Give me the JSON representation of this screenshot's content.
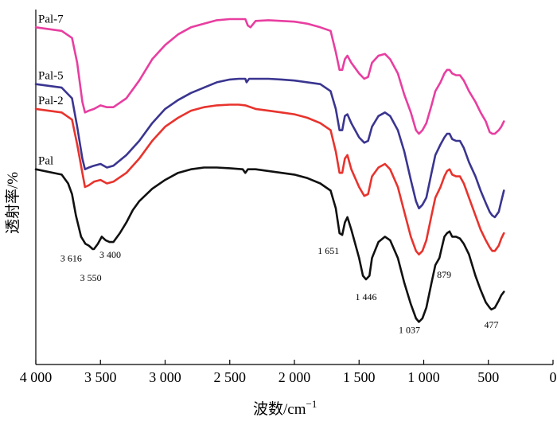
{
  "chart_data": {
    "type": "line",
    "title": "",
    "xlabel": "波数/cm",
    "xlabel_superscript": "−1",
    "ylabel": "透射率/%",
    "xlim": [
      4000,
      0
    ],
    "x_ticks": [
      4000,
      3500,
      3000,
      2500,
      2000,
      1500,
      1000,
      500,
      0
    ],
    "x_tick_labels": [
      "4 000",
      "3 500",
      "3 000",
      "2 500",
      "2 000",
      "1 500",
      "1 000",
      "500",
      "0"
    ],
    "y_ticks_shown": false,
    "ylim": [
      0,
      100
    ],
    "series": [
      {
        "name": "Pal-7",
        "color": "#e83ea0",
        "points": [
          [
            4000,
            95
          ],
          [
            3800,
            94
          ],
          [
            3720,
            92
          ],
          [
            3680,
            85
          ],
          [
            3640,
            74
          ],
          [
            3620,
            71
          ],
          [
            3590,
            71.5
          ],
          [
            3550,
            72
          ],
          [
            3500,
            73
          ],
          [
            3450,
            72.5
          ],
          [
            3400,
            72.5
          ],
          [
            3300,
            75
          ],
          [
            3200,
            80
          ],
          [
            3100,
            86
          ],
          [
            3000,
            90
          ],
          [
            2900,
            93
          ],
          [
            2800,
            95
          ],
          [
            2700,
            96
          ],
          [
            2600,
            97
          ],
          [
            2500,
            97.3
          ],
          [
            2430,
            97.3
          ],
          [
            2380,
            97.3
          ],
          [
            2360,
            95.5
          ],
          [
            2340,
            95
          ],
          [
            2300,
            96.8
          ],
          [
            2200,
            97
          ],
          [
            2100,
            96.8
          ],
          [
            2000,
            96.6
          ],
          [
            1900,
            96
          ],
          [
            1800,
            95
          ],
          [
            1720,
            94
          ],
          [
            1680,
            88
          ],
          [
            1651,
            83
          ],
          [
            1630,
            83
          ],
          [
            1610,
            86
          ],
          [
            1590,
            87
          ],
          [
            1560,
            85
          ],
          [
            1500,
            82
          ],
          [
            1460,
            80.5
          ],
          [
            1430,
            81
          ],
          [
            1400,
            85
          ],
          [
            1350,
            87
          ],
          [
            1300,
            87.5
          ],
          [
            1260,
            86
          ],
          [
            1200,
            82
          ],
          [
            1150,
            76
          ],
          [
            1100,
            71
          ],
          [
            1060,
            66
          ],
          [
            1037,
            65
          ],
          [
            1010,
            66
          ],
          [
            980,
            68
          ],
          [
            940,
            73
          ],
          [
            910,
            77
          ],
          [
            870,
            79.5
          ],
          [
            840,
            82
          ],
          [
            820,
            83
          ],
          [
            800,
            83
          ],
          [
            780,
            82
          ],
          [
            750,
            81.5
          ],
          [
            720,
            81.5
          ],
          [
            690,
            80
          ],
          [
            650,
            77
          ],
          [
            600,
            74
          ],
          [
            560,
            71
          ],
          [
            520,
            68.5
          ],
          [
            490,
            65.5
          ],
          [
            470,
            65
          ],
          [
            450,
            65
          ],
          [
            420,
            66
          ],
          [
            400,
            67
          ],
          [
            380,
            68.5
          ]
        ]
      },
      {
        "name": "Pal-5",
        "color": "#3a3590",
        "points": [
          [
            4000,
            79
          ],
          [
            3800,
            78
          ],
          [
            3720,
            75
          ],
          [
            3680,
            67
          ],
          [
            3640,
            58
          ],
          [
            3620,
            55
          ],
          [
            3590,
            55.5
          ],
          [
            3550,
            56
          ],
          [
            3500,
            56.5
          ],
          [
            3450,
            55.5
          ],
          [
            3400,
            56
          ],
          [
            3300,
            59
          ],
          [
            3200,
            63
          ],
          [
            3100,
            68
          ],
          [
            3000,
            72
          ],
          [
            2900,
            74.5
          ],
          [
            2800,
            76.5
          ],
          [
            2700,
            78
          ],
          [
            2600,
            79.5
          ],
          [
            2500,
            80.3
          ],
          [
            2430,
            80.5
          ],
          [
            2380,
            80.5
          ],
          [
            2370,
            79.5
          ],
          [
            2350,
            80.5
          ],
          [
            2300,
            80.5
          ],
          [
            2200,
            80.5
          ],
          [
            2100,
            80.3
          ],
          [
            2000,
            80
          ],
          [
            1900,
            79.5
          ],
          [
            1800,
            79
          ],
          [
            1720,
            77
          ],
          [
            1680,
            72
          ],
          [
            1651,
            66
          ],
          [
            1630,
            66
          ],
          [
            1610,
            70
          ],
          [
            1590,
            70.5
          ],
          [
            1560,
            68
          ],
          [
            1500,
            64
          ],
          [
            1460,
            62.5
          ],
          [
            1430,
            63
          ],
          [
            1400,
            67
          ],
          [
            1350,
            70
          ],
          [
            1300,
            71
          ],
          [
            1260,
            70
          ],
          [
            1200,
            66
          ],
          [
            1150,
            60
          ],
          [
            1100,
            52
          ],
          [
            1060,
            46
          ],
          [
            1037,
            44
          ],
          [
            1010,
            45
          ],
          [
            980,
            47
          ],
          [
            940,
            54
          ],
          [
            910,
            59
          ],
          [
            870,
            62
          ],
          [
            840,
            64
          ],
          [
            820,
            65
          ],
          [
            800,
            65
          ],
          [
            780,
            63.5
          ],
          [
            750,
            63
          ],
          [
            720,
            63
          ],
          [
            690,
            61
          ],
          [
            650,
            57
          ],
          [
            600,
            53
          ],
          [
            560,
            49
          ],
          [
            520,
            45.5
          ],
          [
            490,
            43
          ],
          [
            470,
            42
          ],
          [
            450,
            41.5
          ],
          [
            420,
            43
          ],
          [
            400,
            46
          ],
          [
            380,
            49
          ]
        ]
      },
      {
        "name": "Pal-2",
        "color": "#e8332d",
        "points": [
          [
            4000,
            72
          ],
          [
            3800,
            71
          ],
          [
            3720,
            69
          ],
          [
            3680,
            62
          ],
          [
            3640,
            54
          ],
          [
            3620,
            50
          ],
          [
            3590,
            50.5
          ],
          [
            3550,
            51.5
          ],
          [
            3500,
            52
          ],
          [
            3450,
            51
          ],
          [
            3400,
            51.5
          ],
          [
            3300,
            54
          ],
          [
            3200,
            58
          ],
          [
            3100,
            63
          ],
          [
            3000,
            67
          ],
          [
            2900,
            69.5
          ],
          [
            2800,
            71.5
          ],
          [
            2700,
            72.5
          ],
          [
            2600,
            73
          ],
          [
            2500,
            73.2
          ],
          [
            2430,
            73.2
          ],
          [
            2380,
            73
          ],
          [
            2300,
            72
          ],
          [
            2200,
            71.5
          ],
          [
            2100,
            71
          ],
          [
            2000,
            70.5
          ],
          [
            1900,
            69.5
          ],
          [
            1800,
            68
          ],
          [
            1720,
            66
          ],
          [
            1680,
            60
          ],
          [
            1651,
            54
          ],
          [
            1630,
            54
          ],
          [
            1610,
            58
          ],
          [
            1590,
            59
          ],
          [
            1560,
            55
          ],
          [
            1500,
            50
          ],
          [
            1460,
            47.5
          ],
          [
            1430,
            48
          ],
          [
            1400,
            53
          ],
          [
            1350,
            55.5
          ],
          [
            1300,
            56.5
          ],
          [
            1260,
            55
          ],
          [
            1200,
            50
          ],
          [
            1150,
            43
          ],
          [
            1100,
            36
          ],
          [
            1060,
            32
          ],
          [
            1037,
            31
          ],
          [
            1010,
            32
          ],
          [
            980,
            35
          ],
          [
            940,
            42
          ],
          [
            910,
            47
          ],
          [
            870,
            50
          ],
          [
            840,
            53
          ],
          [
            820,
            54.5
          ],
          [
            800,
            55
          ],
          [
            780,
            53.5
          ],
          [
            750,
            53
          ],
          [
            720,
            53
          ],
          [
            690,
            51
          ],
          [
            650,
            47
          ],
          [
            600,
            42
          ],
          [
            560,
            38
          ],
          [
            520,
            35
          ],
          [
            490,
            33
          ],
          [
            470,
            32
          ],
          [
            450,
            32
          ],
          [
            420,
            33.5
          ],
          [
            400,
            35.5
          ],
          [
            380,
            37
          ]
        ]
      },
      {
        "name": "Pal",
        "color": "#111111",
        "points": [
          [
            4000,
            55
          ],
          [
            3800,
            53.5
          ],
          [
            3750,
            51
          ],
          [
            3720,
            48
          ],
          [
            3690,
            42
          ],
          [
            3650,
            36
          ],
          [
            3616,
            34
          ],
          [
            3590,
            33.5
          ],
          [
            3560,
            32.5
          ],
          [
            3550,
            32.5
          ],
          [
            3520,
            34
          ],
          [
            3490,
            36
          ],
          [
            3460,
            35
          ],
          [
            3430,
            34.5
          ],
          [
            3400,
            34.5
          ],
          [
            3350,
            37
          ],
          [
            3300,
            40
          ],
          [
            3250,
            43.5
          ],
          [
            3200,
            46
          ],
          [
            3100,
            49.5
          ],
          [
            3000,
            52
          ],
          [
            2900,
            54
          ],
          [
            2800,
            55
          ],
          [
            2700,
            55.5
          ],
          [
            2600,
            55.5
          ],
          [
            2500,
            55.3
          ],
          [
            2400,
            55
          ],
          [
            2380,
            54
          ],
          [
            2360,
            55
          ],
          [
            2300,
            55
          ],
          [
            2200,
            54.5
          ],
          [
            2100,
            54
          ],
          [
            2000,
            53.5
          ],
          [
            1900,
            52.5
          ],
          [
            1800,
            51
          ],
          [
            1720,
            49
          ],
          [
            1680,
            44
          ],
          [
            1651,
            37
          ],
          [
            1630,
            36.5
          ],
          [
            1610,
            40
          ],
          [
            1590,
            41.5
          ],
          [
            1560,
            38
          ],
          [
            1500,
            30
          ],
          [
            1470,
            25
          ],
          [
            1446,
            24
          ],
          [
            1420,
            25
          ],
          [
            1400,
            30
          ],
          [
            1350,
            34.5
          ],
          [
            1300,
            36
          ],
          [
            1260,
            35
          ],
          [
            1200,
            30
          ],
          [
            1150,
            23
          ],
          [
            1100,
            17
          ],
          [
            1060,
            13
          ],
          [
            1037,
            12
          ],
          [
            1010,
            13
          ],
          [
            980,
            16
          ],
          [
            940,
            23
          ],
          [
            910,
            28
          ],
          [
            879,
            30
          ],
          [
            860,
            33
          ],
          [
            840,
            36
          ],
          [
            820,
            37
          ],
          [
            800,
            37.5
          ],
          [
            780,
            36
          ],
          [
            750,
            36
          ],
          [
            720,
            35.5
          ],
          [
            690,
            34
          ],
          [
            650,
            31
          ],
          [
            600,
            25
          ],
          [
            560,
            21
          ],
          [
            520,
            17.5
          ],
          [
            490,
            16
          ],
          [
            477,
            15.5
          ],
          [
            450,
            16
          ],
          [
            420,
            18
          ],
          [
            400,
            19.5
          ],
          [
            380,
            20.5
          ]
        ]
      }
    ],
    "annotations": [
      {
        "text": "3 616",
        "x": 3616,
        "y": 34
      },
      {
        "text": "3 550",
        "x": 3550,
        "y": 32.5
      },
      {
        "text": "3 400",
        "x": 3400,
        "y": 34.5
      },
      {
        "text": "1 651",
        "x": 1651,
        "y": 36.5
      },
      {
        "text": "1 446",
        "x": 1446,
        "y": 24
      },
      {
        "text": "1 037",
        "x": 1037,
        "y": 12
      },
      {
        "text": "879",
        "x": 879,
        "y": 30
      },
      {
        "text": "477",
        "x": 477,
        "y": 15.5
      }
    ]
  }
}
